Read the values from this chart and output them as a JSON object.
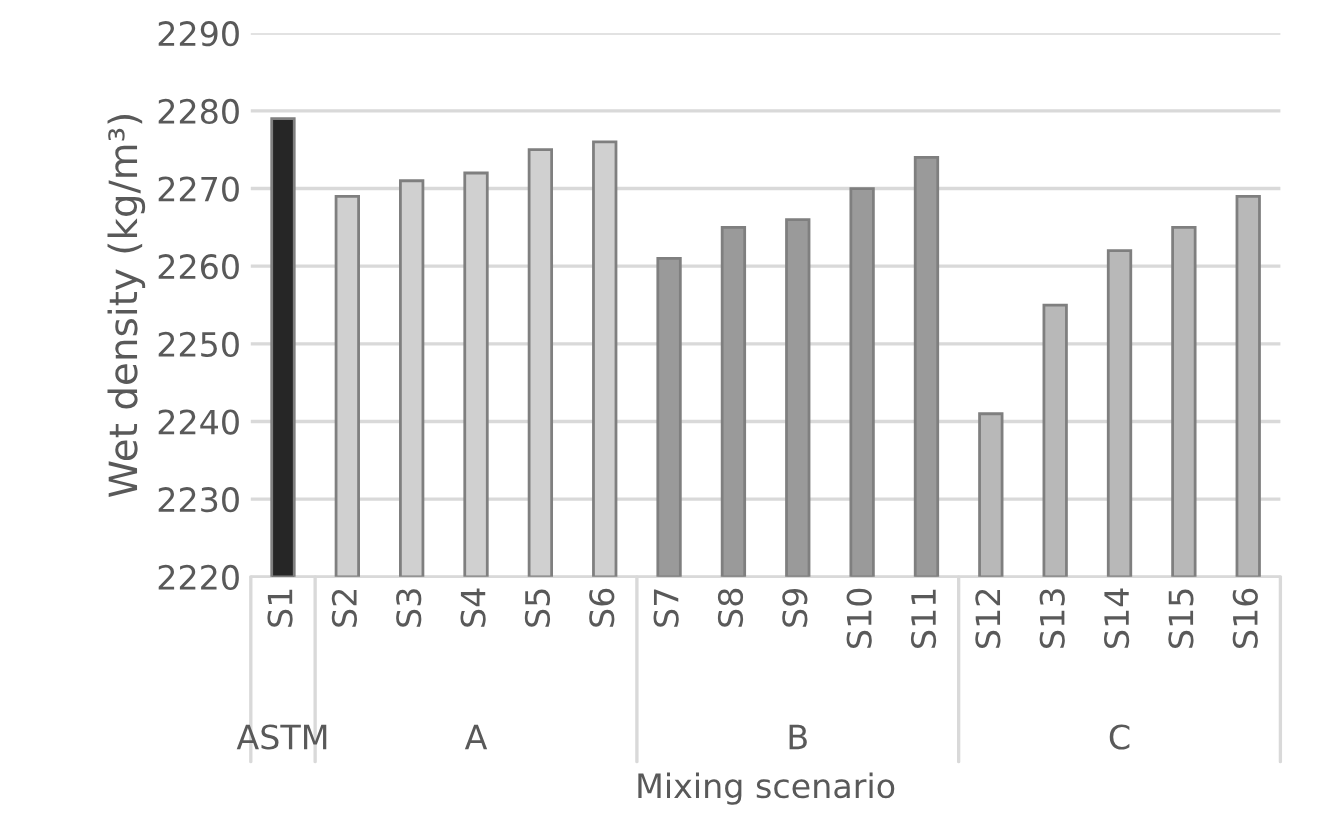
{
  "chart_data": {
    "type": "bar",
    "xlabel": "Mixing scenario",
    "ylabel": "Wet density (kg/m³)",
    "categories": [
      "S1",
      "S2",
      "S3",
      "S4",
      "S5",
      "S6",
      "S7",
      "S8",
      "S9",
      "S10",
      "S11",
      "S12",
      "S13",
      "S14",
      "S15",
      "S16"
    ],
    "values": [
      2279,
      2269,
      2271,
      2272,
      2275,
      2276,
      2261,
      2265,
      2266,
      2270,
      2274,
      2241,
      2255,
      2262,
      2265,
      2269
    ],
    "colors": [
      "#262626",
      "#d0d0d0",
      "#d0d0d0",
      "#d0d0d0",
      "#d0d0d0",
      "#d0d0d0",
      "#9a9a9a",
      "#9a9a9a",
      "#9a9a9a",
      "#9a9a9a",
      "#9a9a9a",
      "#b8b8b8",
      "#b8b8b8",
      "#b8b8b8",
      "#b8b8b8",
      "#b8b8b8"
    ],
    "ylim": [
      2220,
      2290
    ],
    "yticks": [
      2220,
      2230,
      2240,
      2250,
      2260,
      2270,
      2280,
      2290
    ],
    "grid": "y",
    "annotations": [
      "ASTM",
      "A",
      "B",
      "C"
    ]
  }
}
